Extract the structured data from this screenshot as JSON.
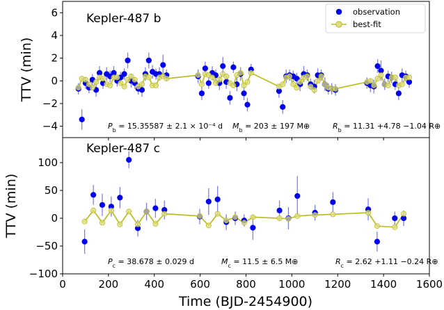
{
  "chart_data": [
    {
      "type": "scatter",
      "title": "Kepler-487 b",
      "xlabel": "",
      "ylabel": "TTV (min)",
      "xlim": [
        0,
        1600
      ],
      "ylim": [
        -5,
        7
      ],
      "yticks": [
        -4,
        -2,
        0,
        2,
        4,
        6
      ],
      "xticks": [
        0,
        200,
        400,
        600,
        800,
        1000,
        1200,
        1400,
        1600
      ],
      "legend": {
        "placement": "top-right",
        "entries": [
          "observation",
          "best-fit"
        ]
      },
      "colors": {
        "observation": "#0000ee",
        "errorbar": "#8080f0",
        "best_fit": "#bcbc22"
      },
      "annotations": [
        {
          "italic": "P",
          "sub": "b",
          "text": " = 15.35587 ± 2.1 × 10⁻⁴ d"
        },
        {
          "italic": "M",
          "sub": "b",
          "text": " = 203 ± 197 M⊕"
        },
        {
          "italic": "R",
          "sub": "b",
          "text": " = 11.31 +4.78 −1.04 R⊕"
        }
      ],
      "series": [
        {
          "name": "observation",
          "x": [
            69,
            84,
            100,
            115,
            130,
            146,
            161,
            176,
            192,
            207,
            223,
            238,
            253,
            269,
            284,
            299,
            315,
            330,
            346,
            361,
            376,
            392,
            407,
            422,
            438,
            453,
            591,
            607,
            622,
            637,
            653,
            668,
            684,
            699,
            714,
            730,
            745,
            760,
            776,
            791,
            806,
            822,
            944,
            960,
            975,
            990,
            1006,
            1021,
            1036,
            1052,
            1067,
            1082,
            1098,
            1113,
            1128,
            1144,
            1159,
            1174,
            1190,
            1328,
            1343,
            1358,
            1374,
            1389,
            1405,
            1420,
            1435,
            1451,
            1466,
            1481,
            1497,
            1512
          ],
          "y": [
            -0.7,
            -3.4,
            -0.2,
            -0.6,
            0.1,
            -0.8,
            0.7,
            -0.2,
            0.6,
            0.4,
            0.7,
            0.0,
            0.3,
            0.6,
            1.8,
            0.0,
            -0.2,
            -0.7,
            -0.8,
            0.6,
            1.8,
            0.8,
            0.6,
            0.6,
            1.4,
            0.5,
            0.4,
            -1.1,
            1.1,
            -0.2,
            0.7,
            0.5,
            -0.2,
            1.3,
            -0.1,
            -1.5,
            1.2,
            -0.3,
            0.6,
            -1.1,
            -2.1,
            1.0,
            -0.9,
            -2.3,
            0.4,
            0.5,
            0.4,
            0.2,
            -0.3,
            0.6,
            0.5,
            -0.3,
            -0.5,
            0.5,
            0.5,
            -0.3,
            -0.7,
            -0.7,
            -0.8,
            -0.2,
            -0.4,
            -0.5,
            1.3,
            0.9,
            -0.3,
            0.4,
            0.3,
            -0.3,
            -1.1,
            0.5,
            0.4,
            -0.1
          ],
          "yerr": [
            0.5,
            0.9,
            0.5,
            0.5,
            0.5,
            0.6,
            0.6,
            0.5,
            0.6,
            0.5,
            0.6,
            0.5,
            0.5,
            0.5,
            0.7,
            0.6,
            0.5,
            0.5,
            0.6,
            0.6,
            0.7,
            0.6,
            0.5,
            0.6,
            0.9,
            0.5,
            0.6,
            0.6,
            0.6,
            0.5,
            0.6,
            0.5,
            0.6,
            0.8,
            0.6,
            0.6,
            0.5,
            0.6,
            0.6,
            0.6,
            0.6,
            0.5,
            0.6,
            0.6,
            0.6,
            0.5,
            0.5,
            0.5,
            0.6,
            0.7,
            0.5,
            0.5,
            0.6,
            0.6,
            0.5,
            0.6,
            0.5,
            0.5,
            0.5,
            0.5,
            0.6,
            0.6,
            0.6,
            0.9,
            0.5,
            0.5,
            0.5,
            0.5,
            0.6,
            0.6,
            0.5,
            0.5
          ]
        },
        {
          "name": "best-fit",
          "x": [
            69,
            84,
            100,
            115,
            130,
            146,
            161,
            176,
            192,
            207,
            223,
            238,
            253,
            269,
            284,
            299,
            315,
            330,
            346,
            361,
            376,
            392,
            407,
            422,
            438,
            453,
            591,
            607,
            622,
            637,
            653,
            668,
            684,
            699,
            714,
            730,
            745,
            760,
            776,
            791,
            806,
            822,
            944,
            960,
            975,
            990,
            1006,
            1021,
            1036,
            1052,
            1067,
            1082,
            1098,
            1113,
            1128,
            1144,
            1159,
            1174,
            1190,
            1328,
            1343,
            1358,
            1374,
            1389,
            1405,
            1420,
            1435,
            1451,
            1466,
            1481,
            1497,
            1512
          ],
          "y": [
            -0.6,
            0.2,
            0.1,
            -0.3,
            -0.6,
            -0.1,
            0.3,
            0.2,
            -0.3,
            -0.4,
            0.3,
            0.3,
            -0.2,
            -0.5,
            0.1,
            0.4,
            0.1,
            -0.5,
            -0.3,
            0.4,
            0.3,
            -0.4,
            -0.4,
            0.3,
            0.4,
            0.2,
            0.5,
            -0.3,
            0.6,
            0.5,
            0.3,
            -0.2,
            0.1,
            0.6,
            0.4,
            -0.2,
            -0.4,
            0.5,
            0.7,
            -0.4,
            -0.1,
            0.7,
            -0.5,
            -0.3,
            0.3,
            0.4,
            -0.3,
            -0.6,
            -0.1,
            0.3,
            0.4,
            -0.5,
            -0.8,
            0.0,
            0.4,
            -0.3,
            -0.6,
            -0.7,
            -0.7,
            -0.1,
            0.0,
            -0.4,
            0.2,
            0.5,
            -0.3,
            -0.4,
            0.3,
            0.3,
            -0.4,
            -0.3,
            0.3,
            0.3
          ]
        }
      ]
    },
    {
      "type": "scatter",
      "title": "Kepler-487 c",
      "xlabel": "Time (BJD-2454900)",
      "ylabel": "TTV (min)",
      "xlim": [
        0,
        1600
      ],
      "ylim": [
        -100,
        145
      ],
      "yticks": [
        -100,
        -50,
        0,
        50,
        100
      ],
      "xticks": [
        0,
        200,
        400,
        600,
        800,
        1000,
        1200,
        1400,
        1600
      ],
      "colors": {
        "observation": "#0000ee",
        "errorbar": "#8080f0",
        "best_fit": "#bcbc22"
      },
      "annotations": [
        {
          "italic": "P",
          "sub": "c",
          "text": " = 38.678 ± 0.029 d"
        },
        {
          "italic": "M",
          "sub": "c",
          "text": " = 11.5 ± 6.5 M⊕"
        },
        {
          "italic": "R",
          "sub": "c",
          "text": " = 2.62 +1.11 −0.24 R⊕"
        }
      ],
      "series": [
        {
          "name": "observation",
          "x": [
            96,
            134,
            173,
            212,
            250,
            289,
            328,
            366,
            405,
            444,
            598,
            637,
            676,
            714,
            753,
            792,
            830,
            946,
            985,
            1024,
            1101,
            1179,
            1333,
            1372,
            1449,
            1488
          ],
          "y": [
            -42,
            42,
            24,
            21,
            37,
            105,
            -18,
            12,
            18,
            15,
            3,
            30,
            34,
            -7,
            0,
            -4,
            -17,
            14,
            0,
            40,
            10,
            29,
            16,
            -42,
            0,
            0
          ],
          "yerr": [
            22,
            18,
            20,
            18,
            19,
            15,
            15,
            16,
            17,
            17,
            14,
            24,
            24,
            14,
            12,
            11,
            22,
            18,
            20,
            36,
            14,
            18,
            20,
            18,
            12,
            14
          ]
        },
        {
          "name": "best-fit",
          "x": [
            96,
            134,
            173,
            212,
            250,
            289,
            328,
            366,
            405,
            444,
            598,
            637,
            676,
            714,
            753,
            792,
            830,
            946,
            985,
            1024,
            1101,
            1179,
            1333,
            1372,
            1449,
            1488
          ],
          "y": [
            -6,
            14,
            -8,
            14,
            -11,
            12,
            -11,
            12,
            -10,
            8,
            4,
            -13,
            8,
            -4,
            2,
            -8,
            2,
            0,
            -1,
            4,
            6,
            7,
            10,
            -14,
            -16,
            8
          ]
        }
      ]
    }
  ]
}
